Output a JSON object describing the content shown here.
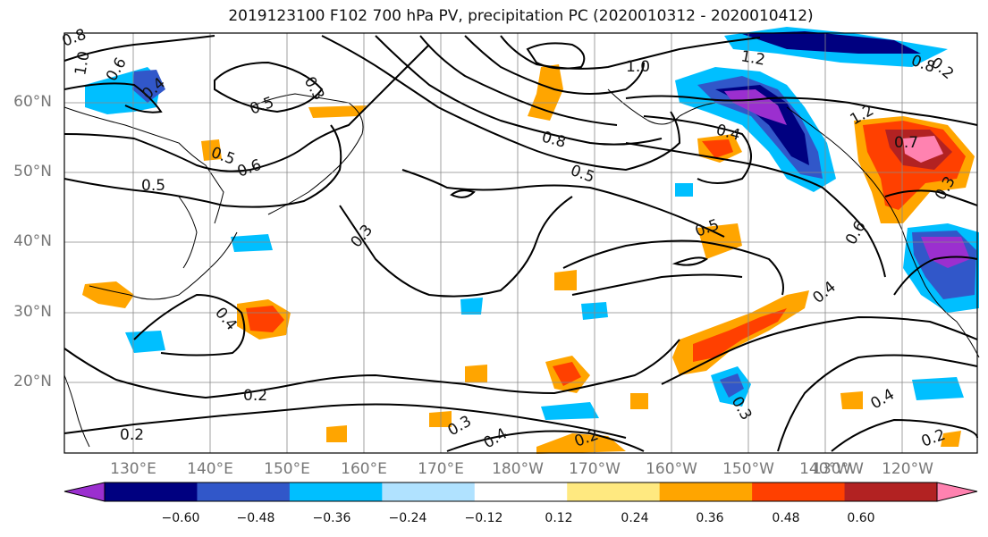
{
  "title": "2019123100 F102 700 hPa PV, precipitation PC (2020010312 - 2020010412)",
  "lat_labels": [
    "60°N",
    "50°N",
    "40°N",
    "30°N",
    "20°N"
  ],
  "lat_values": [
    60,
    50,
    40,
    30,
    20
  ],
  "lon_labels": [
    "130°E",
    "140°E",
    "150°E",
    "160°E",
    "170°E",
    "180°W",
    "170°W",
    "160°W",
    "150°W",
    "140°W",
    "130°W",
    "120°W"
  ],
  "lon_values": [
    130,
    140,
    150,
    160,
    170,
    180,
    190,
    200,
    210,
    220,
    230,
    240
  ],
  "colorbar": {
    "colors": [
      "#9b2fcf",
      "#000080",
      "#3157c9",
      "#00bfff",
      "#b0e2ff",
      "#ffffff",
      "#ffe980",
      "#ffa500",
      "#ff4000",
      "#b22222",
      "#ff82b0"
    ],
    "tick_labels": [
      "−0.60",
      "−0.48",
      "−0.36",
      "−0.24",
      "−0.12",
      "0.12",
      "0.24",
      "0.36",
      "0.48",
      "0.60"
    ]
  },
  "contour_labels": [
    "0.8",
    "1.0",
    "0.6",
    "0.4",
    "0.3",
    "0.5",
    "1.0",
    "1.2",
    "0.8",
    "0.4",
    "1.2",
    "0.7",
    "0.3",
    "0.5",
    "0.6",
    "0.5",
    "0.8",
    "0.5",
    "0.3",
    "0.5",
    "0.6",
    "0.4",
    "0.4",
    "0.3",
    "0.2",
    "0.2",
    "0.4",
    "0.2",
    "0.3",
    "0.4",
    "0.2",
    "0.2"
  ],
  "colors": {
    "contour": "#000000",
    "grid": "#888888",
    "coast": "#000000"
  }
}
